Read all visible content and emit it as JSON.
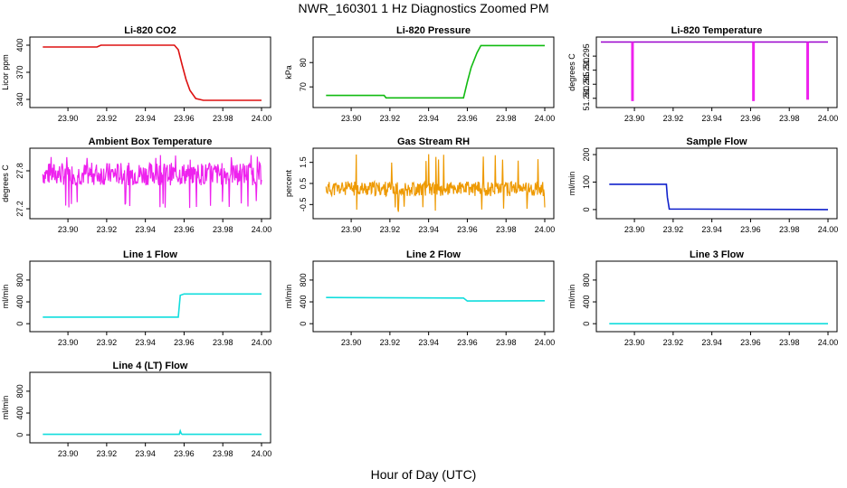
{
  "title": "NWR_160301  1 Hz Diagnostics Zoomed PM",
  "xlabel": "Hour of Day (UTC)",
  "chart_data": [
    {
      "type": "line",
      "title": "Li-820 CO2",
      "ylabel": "Licor ppm",
      "color": "#dd1111",
      "xlim": [
        23.885,
        24.0
      ],
      "ylim": [
        335,
        405
      ],
      "x_ticks": [
        "23.90",
        "23.92",
        "23.94",
        "23.96",
        "23.98",
        "24.00"
      ],
      "y_ticks": [
        340,
        370,
        400
      ],
      "y_tick_labels": [
        "340",
        "370",
        "400"
      ],
      "series": [
        {
          "x": [
            23.887,
            23.915,
            23.917,
            23.955,
            23.957,
            23.959,
            23.961,
            23.963,
            23.966,
            23.97,
            24.0
          ],
          "values": [
            398,
            398,
            400,
            400,
            395,
            378,
            362,
            350,
            341,
            339,
            339
          ]
        }
      ]
    },
    {
      "type": "line",
      "title": "Li-820 Pressure",
      "ylabel": "kPa",
      "color": "#11bb11",
      "xlim": [
        23.885,
        24.0
      ],
      "ylim": [
        63,
        89
      ],
      "x_ticks": [
        "23.90",
        "23.92",
        "23.94",
        "23.96",
        "23.98",
        "24.00"
      ],
      "y_ticks": [
        70,
        80
      ],
      "y_tick_labels": [
        "70",
        "80"
      ],
      "series": [
        {
          "x": [
            23.887,
            23.917,
            23.918,
            23.958,
            23.96,
            23.962,
            23.965,
            23.967,
            24.0
          ],
          "values": [
            66.5,
            66.5,
            65.5,
            65.5,
            72,
            78,
            84,
            87,
            87
          ]
        }
      ]
    },
    {
      "type": "line",
      "title": "Li-820 Temperature",
      "ylabel": "degrees C",
      "color": "#ee22ee",
      "xlim": [
        23.885,
        24.0
      ],
      "ylim": [
        51.278,
        51.3005
      ],
      "x_ticks": [
        "23.90",
        "23.92",
        "23.94",
        "23.96",
        "23.98",
        "24.00"
      ],
      "y_ticks": [
        51.28,
        51.285,
        51.29,
        51.295
      ],
      "y_tick_labels": [
        "51.280",
        "51.285",
        "51.290",
        "51.295"
      ],
      "baseline": 51.3,
      "baseline_color": "#9900cc",
      "series": [
        {
          "x": [
            23.899,
            23.9615,
            23.9895
          ],
          "values": [
            51.279,
            51.279,
            51.2795
          ]
        }
      ]
    },
    {
      "type": "line",
      "title": "Ambient Box Temperature",
      "ylabel": "degrees C",
      "color": "#ee22ee",
      "xlim": [
        23.885,
        24.0
      ],
      "ylim": [
        27.1,
        28.1
      ],
      "x_ticks": [
        "23.90",
        "23.92",
        "23.94",
        "23.96",
        "23.98",
        "24.00"
      ],
      "y_ticks": [
        27.2,
        27.8
      ],
      "y_tick_labels": [
        "27.2",
        "27.8"
      ],
      "noise": {
        "seed": 7,
        "center": 27.75,
        "amp": 0.18,
        "spike_min": 27.2,
        "spike_max": 28.05
      },
      "series": []
    },
    {
      "type": "line",
      "title": "Gas Stream RH",
      "ylabel": "percent",
      "color": "#ee9900",
      "xlim": [
        23.885,
        24.0
      ],
      "ylim": [
        -1.0,
        2.0
      ],
      "x_ticks": [
        "23.90",
        "23.92",
        "23.94",
        "23.96",
        "23.98",
        "24.00"
      ],
      "y_ticks": [
        -0.5,
        0.5,
        1.5
      ],
      "y_tick_labels": [
        "-0.5",
        "0.5",
        "1.5"
      ],
      "noise": {
        "seed": 11,
        "center": 0.25,
        "amp": 0.35,
        "spike_min": -0.85,
        "spike_max": 1.9
      },
      "series": []
    },
    {
      "type": "line",
      "title": "Sample Flow",
      "ylabel": "ml/min",
      "color": "#1122cc",
      "xlim": [
        23.885,
        24.0
      ],
      "ylim": [
        -20,
        210
      ],
      "x_ticks": [
        "23.90",
        "23.92",
        "23.94",
        "23.96",
        "23.98",
        "24.00"
      ],
      "y_ticks": [
        0,
        100,
        200
      ],
      "y_tick_labels": [
        "0",
        "100",
        "200"
      ],
      "series": [
        {
          "x": [
            23.887,
            23.9165,
            23.917,
            23.918,
            24.0
          ],
          "values": [
            92,
            92,
            45,
            2,
            0
          ]
        }
      ]
    },
    {
      "type": "line",
      "title": "Line 1 Flow",
      "ylabel": "ml/min",
      "color": "#11dddd",
      "xlim": [
        23.885,
        24.0
      ],
      "ylim": [
        -80,
        1080
      ],
      "x_ticks": [
        "23.90",
        "23.92",
        "23.94",
        "23.96",
        "23.98",
        "24.00"
      ],
      "y_ticks": [
        0,
        400,
        800
      ],
      "y_tick_labels": [
        "0",
        "400",
        "800"
      ],
      "series": [
        {
          "x": [
            23.887,
            23.957,
            23.958,
            23.96,
            24.0
          ],
          "values": [
            120,
            120,
            520,
            545,
            545
          ]
        }
      ]
    },
    {
      "type": "line",
      "title": "Line 2 Flow",
      "ylabel": "ml/min",
      "color": "#11dddd",
      "xlim": [
        23.885,
        24.0
      ],
      "ylim": [
        -80,
        1080
      ],
      "x_ticks": [
        "23.90",
        "23.92",
        "23.94",
        "23.96",
        "23.98",
        "24.00"
      ],
      "y_ticks": [
        0,
        400,
        800
      ],
      "y_tick_labels": [
        "0",
        "400",
        "800"
      ],
      "series": [
        {
          "x": [
            23.887,
            23.958,
            23.96,
            24.0
          ],
          "values": [
            480,
            470,
            415,
            420
          ]
        }
      ]
    },
    {
      "type": "line",
      "title": "Line 3 Flow",
      "ylabel": "ml/min",
      "color": "#11dddd",
      "xlim": [
        23.885,
        24.0
      ],
      "ylim": [
        -80,
        1080
      ],
      "x_ticks": [
        "23.90",
        "23.92",
        "23.94",
        "23.96",
        "23.98",
        "24.00"
      ],
      "y_ticks": [
        0,
        400,
        800
      ],
      "y_tick_labels": [
        "0",
        "400",
        "800"
      ],
      "series": [
        {
          "x": [
            23.887,
            24.0
          ],
          "values": [
            0,
            0
          ]
        }
      ]
    },
    {
      "type": "line",
      "title": "Line 4 (LT) Flow",
      "ylabel": "ml/min",
      "color": "#11dddd",
      "xlim": [
        23.885,
        24.0
      ],
      "ylim": [
        -80,
        1080
      ],
      "x_ticks": [
        "23.90",
        "23.92",
        "23.94",
        "23.96",
        "23.98",
        "24.00"
      ],
      "y_ticks": [
        0,
        400,
        800
      ],
      "y_tick_labels": [
        "0",
        "400",
        "800"
      ],
      "series": [
        {
          "x": [
            23.887,
            23.9575,
            23.958,
            23.9585,
            23.959,
            24.0
          ],
          "values": [
            10,
            10,
            70,
            25,
            10,
            10
          ]
        }
      ]
    }
  ]
}
